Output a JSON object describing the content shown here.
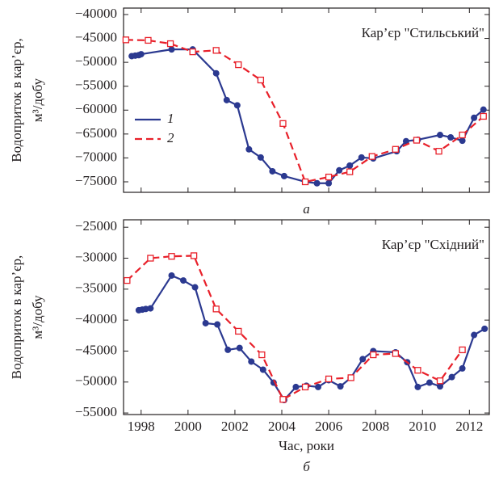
{
  "chart_data": [
    {
      "type": "line",
      "title": "Кар’єр \"Стильський\"",
      "panel_label": "а",
      "ylabel": [
        "Водоприток в кар’єр,",
        "м³/добу"
      ],
      "xlim": [
        1997.25,
        2012.85
      ],
      "xticks": [
        1998,
        2000,
        2002,
        2004,
        2006,
        2008,
        2010,
        2012
      ],
      "xtick_labels": false,
      "ylim": [
        -77200,
        -38650
      ],
      "yticks": [
        {
          "value": -40000,
          "label": "−40000"
        },
        {
          "value": -45000,
          "label": "−45000"
        },
        {
          "value": -50000,
          "label": "−50000"
        },
        {
          "value": -55000,
          "label": "−55000"
        },
        {
          "value": -60000,
          "label": "−60000"
        },
        {
          "value": -65000,
          "label": "−65000"
        },
        {
          "value": -70000,
          "label": "−70000"
        },
        {
          "value": -75000,
          "label": "−75000"
        }
      ],
      "legend": true,
      "series": [
        {
          "name": "1",
          "color": "#2b3990",
          "marker": "circle",
          "linestyle": "solid",
          "x": [
            1997.6,
            1997.75,
            1997.9,
            1998.0,
            1999.3,
            2000.2,
            2001.2,
            2001.65,
            2002.1,
            2002.6,
            2003.1,
            2003.6,
            2004.1,
            2005.0,
            2005.5,
            2006.0,
            2006.45,
            2006.9,
            2007.4,
            2007.9,
            2008.9,
            2009.3,
            2009.8,
            2010.75,
            2011.2,
            2011.7,
            2012.2,
            2012.6
          ],
          "values": [
            -48700,
            -48600,
            -48500,
            -48300,
            -47300,
            -47300,
            -52300,
            -57900,
            -59000,
            -68200,
            -69900,
            -72800,
            -73800,
            -75000,
            -75300,
            -75300,
            -72600,
            -71600,
            -69900,
            -70100,
            -68600,
            -66500,
            -66200,
            -65200,
            -65700,
            -66400,
            -61600,
            -59900
          ]
        },
        {
          "name": "2",
          "color": "#e8202a",
          "marker": "square",
          "linestyle": "dashed",
          "x": [
            1997.35,
            1998.3,
            1999.25,
            2000.2,
            2001.2,
            2002.15,
            2003.1,
            2004.05,
            2005.0,
            2006.0,
            2006.9,
            2007.85,
            2008.85,
            2009.75,
            2010.7,
            2011.7,
            2012.6
          ],
          "values": [
            -45300,
            -45400,
            -46100,
            -47800,
            -47500,
            -50500,
            -53700,
            -62800,
            -75000,
            -74000,
            -72900,
            -69700,
            -68200,
            -66300,
            -68600,
            -65200,
            -61300
          ]
        }
      ]
    },
    {
      "type": "line",
      "title": "Кар’єр \"Східний\"",
      "panel_label": "б",
      "xlabel": "Час, роки",
      "ylabel": [
        "Водоприток в кар’єр,",
        "м³/добу"
      ],
      "xlim": [
        1997.25,
        2012.85
      ],
      "xticks": [
        1998,
        2000,
        2002,
        2004,
        2006,
        2008,
        2010,
        2012
      ],
      "xtick_labels": true,
      "ylim": [
        -55250,
        -23800
      ],
      "yticks": [
        {
          "value": -25000,
          "label": "−25000"
        },
        {
          "value": -30000,
          "label": "−30000"
        },
        {
          "value": -35000,
          "label": "−35000"
        },
        {
          "value": -40000,
          "label": "−40000"
        },
        {
          "value": -45000,
          "label": "−45000"
        },
        {
          "value": -50000,
          "label": "−50000"
        },
        {
          "value": -55000,
          "label": "−55000"
        }
      ],
      "legend": false,
      "series": [
        {
          "color": "#2b3990",
          "marker": "circle",
          "linestyle": "solid",
          "x": [
            1997.9,
            1998.05,
            1998.2,
            1998.4,
            1999.3,
            1999.8,
            2000.3,
            2000.75,
            2001.25,
            2001.7,
            2002.2,
            2002.7,
            2003.2,
            2003.65,
            2004.1,
            2004.6,
            2005.05,
            2005.55,
            2006.0,
            2006.5,
            2006.95,
            2007.45,
            2007.9,
            2008.85,
            2009.35,
            2009.8,
            2010.3,
            2010.75,
            2011.25,
            2011.7,
            2012.2,
            2012.65
          ],
          "values": [
            -38400,
            -38300,
            -38200,
            -38100,
            -32800,
            -33600,
            -34700,
            -40500,
            -40700,
            -44800,
            -44500,
            -46700,
            -48000,
            -50100,
            -52900,
            -50800,
            -50600,
            -50800,
            -49700,
            -50700,
            -49300,
            -46300,
            -45000,
            -45200,
            -46800,
            -50800,
            -50100,
            -50700,
            -49200,
            -47800,
            -42400,
            -41400
          ]
        },
        {
          "color": "#e8202a",
          "marker": "square",
          "linestyle": "dashed",
          "x": [
            1997.4,
            1998.4,
            1999.3,
            2000.25,
            2001.2,
            2002.15,
            2003.15,
            2004.05,
            2005.0,
            2006.0,
            2006.95,
            2007.9,
            2008.85,
            2009.8,
            2010.75,
            2011.7
          ],
          "values": [
            -33600,
            -30000,
            -29700,
            -29600,
            -38200,
            -41800,
            -45600,
            -52800,
            -50800,
            -49500,
            -49300,
            -45600,
            -45400,
            -48100,
            -49800,
            -44800
          ]
        }
      ]
    }
  ]
}
